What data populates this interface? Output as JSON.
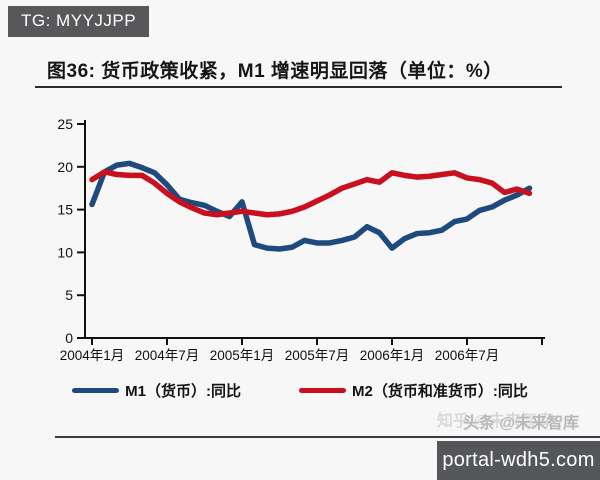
{
  "badge": {
    "text": "TG: MYYJJPP"
  },
  "figure": {
    "title": "图36: 货币政策收紧，M1 增速明显回落（单位：%）"
  },
  "watermark": {
    "line1": "知乎 @未来智库",
    "line2": "头条 @未来智库"
  },
  "footer": {
    "site": "portal-wdh5.com"
  },
  "chart_data": {
    "type": "line",
    "x_range": [
      "2004-01",
      "2006-12"
    ],
    "x_freq": "monthly",
    "x_tick_labels": [
      "2004年1月",
      "2004年7月",
      "2005年1月",
      "2005年7月",
      "2006年1月",
      "2006年7月"
    ],
    "x_tick_month_indices": [
      0,
      6,
      12,
      18,
      24,
      30
    ],
    "y_ticks": [
      0,
      5,
      10,
      15,
      20,
      25
    ],
    "ylim": [
      0,
      25
    ],
    "grid": "off",
    "legend_position": "bottom",
    "axis_color": "#111111",
    "series": [
      {
        "name": "M1（货币）:同比",
        "color": "#1f4a7d",
        "values": [
          15.6,
          19.4,
          20.2,
          20.4,
          19.9,
          19.3,
          17.9,
          16.2,
          15.8,
          15.5,
          14.8,
          14.2,
          15.9,
          10.9,
          10.5,
          10.4,
          10.6,
          11.4,
          11.1,
          11.1,
          11.4,
          11.8,
          13.0,
          12.3,
          10.5,
          11.6,
          12.2,
          12.3,
          12.6,
          13.6,
          13.9,
          14.9,
          15.3,
          16.1,
          16.7,
          17.5
        ]
      },
      {
        "name": "M2（货币和准货币）:同比",
        "color": "#c8101e",
        "values": [
          18.5,
          19.4,
          19.1,
          19.0,
          19.0,
          18.1,
          16.9,
          15.9,
          15.2,
          14.6,
          14.4,
          14.6,
          14.8,
          14.6,
          14.4,
          14.5,
          14.8,
          15.3,
          16.0,
          16.7,
          17.5,
          18.0,
          18.5,
          18.2,
          19.3,
          19.0,
          18.8,
          18.9,
          19.1,
          19.3,
          18.7,
          18.5,
          18.1,
          17.0,
          17.4,
          16.9
        ]
      }
    ]
  }
}
